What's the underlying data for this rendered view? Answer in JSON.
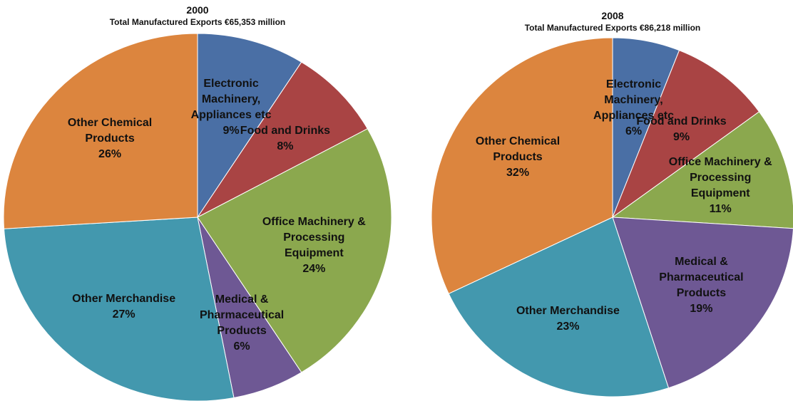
{
  "chart_data": [
    {
      "type": "pie",
      "title": "2000",
      "subtitle": "Total Manufactured Exports €65,353 million",
      "categories": [
        "Electronic Machinery, Appliances etc",
        "Food and Drinks",
        "Office Machinery & Processing Equipment",
        "Medical & Pharmaceutical Products",
        "Other Merchandise",
        "Other Chemical Products"
      ],
      "values": [
        9,
        8,
        24,
        6,
        27,
        26
      ],
      "value_labels": [
        "9%",
        "8%",
        "24%",
        "6%",
        "27%",
        "26%"
      ],
      "colors": [
        "#4a6fa5",
        "#a94444",
        "#8ba84e",
        "#6e5894",
        "#4398ae",
        "#dc853e"
      ]
    },
    {
      "type": "pie",
      "title": "2008",
      "subtitle": "Total Manufactured Exports €86,218 million",
      "categories": [
        "Electronic Machinery, Appliances etc",
        "Food and Drinks",
        "Office Machinery & Processing Equipment",
        "Medical & Pharmaceutical Products",
        "Other Merchandise",
        "Other Chemical Products"
      ],
      "values": [
        6,
        9,
        11,
        19,
        23,
        32
      ],
      "value_labels": [
        "6%",
        "9%",
        "11%",
        "19%",
        "23%",
        "32%"
      ],
      "colors": [
        "#4a6fa5",
        "#a94444",
        "#8ba84e",
        "#6e5894",
        "#4398ae",
        "#dc853e"
      ]
    }
  ]
}
